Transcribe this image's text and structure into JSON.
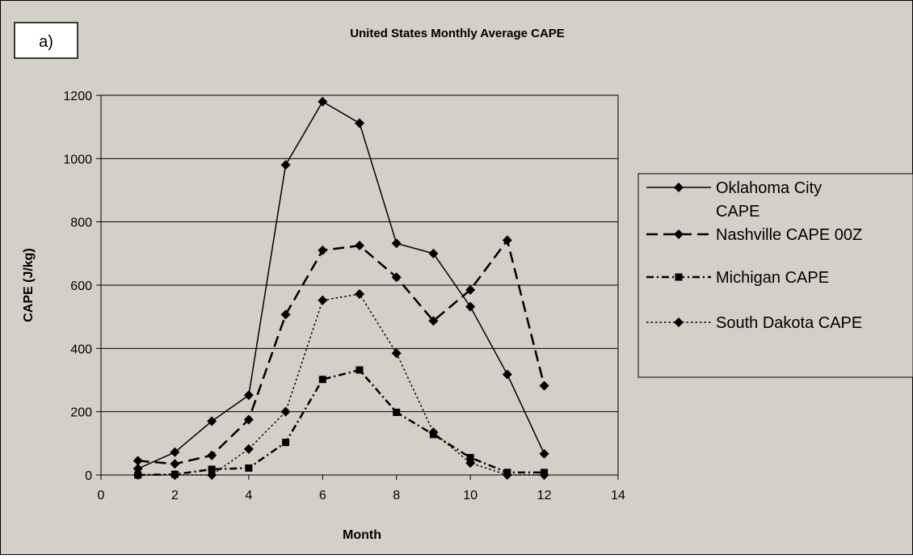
{
  "panel_label": "a)",
  "chart_data": {
    "type": "line",
    "title": "United States Monthly Average CAPE",
    "xlabel": "Month",
    "ylabel": "CAPE (J/kg)",
    "xlim": [
      0,
      14
    ],
    "ylim": [
      0,
      1200
    ],
    "x_ticks": [
      0,
      2,
      4,
      6,
      8,
      10,
      12,
      14
    ],
    "y_ticks": [
      0,
      200,
      400,
      600,
      800,
      1000,
      1200
    ],
    "grid": "horizontal",
    "legend_position": "right",
    "x": [
      1,
      2,
      3,
      4,
      5,
      6,
      7,
      8,
      9,
      10,
      11,
      12
    ],
    "series": [
      {
        "name": "Oklahoma City CAPE",
        "name_lines": [
          "Oklahoma City",
          "CAPE"
        ],
        "values": [
          20,
          72,
          170,
          252,
          980,
          1180,
          1112,
          732,
          700,
          532,
          318,
          67
        ],
        "marker": "diamond",
        "line_style": "solid"
      },
      {
        "name": "Nashville CAPE 00Z",
        "name_lines": [
          "Nashville CAPE 00Z"
        ],
        "values": [
          45,
          35,
          62,
          175,
          507,
          710,
          725,
          625,
          487,
          585,
          742,
          282
        ],
        "marker": "diamond",
        "line_style": "long-dash"
      },
      {
        "name": "Michigan CAPE",
        "name_lines": [
          "Michigan CAPE"
        ],
        "values": [
          0,
          2,
          18,
          22,
          103,
          302,
          332,
          198,
          128,
          55,
          8,
          8
        ],
        "marker": "square",
        "line_style": "dash-dot"
      },
      {
        "name": "South Dakota CAPE",
        "name_lines": [
          "South Dakota CAPE"
        ],
        "values": [
          0,
          0,
          0,
          82,
          200,
          552,
          572,
          385,
          135,
          38,
          0,
          0
        ],
        "marker": "diamond",
        "line_style": "dotted"
      }
    ],
    "colors": {
      "background": "#d4d0c8",
      "plot_area": "#d4d0c8",
      "line": "#000000",
      "box": "#ffffff"
    }
  }
}
